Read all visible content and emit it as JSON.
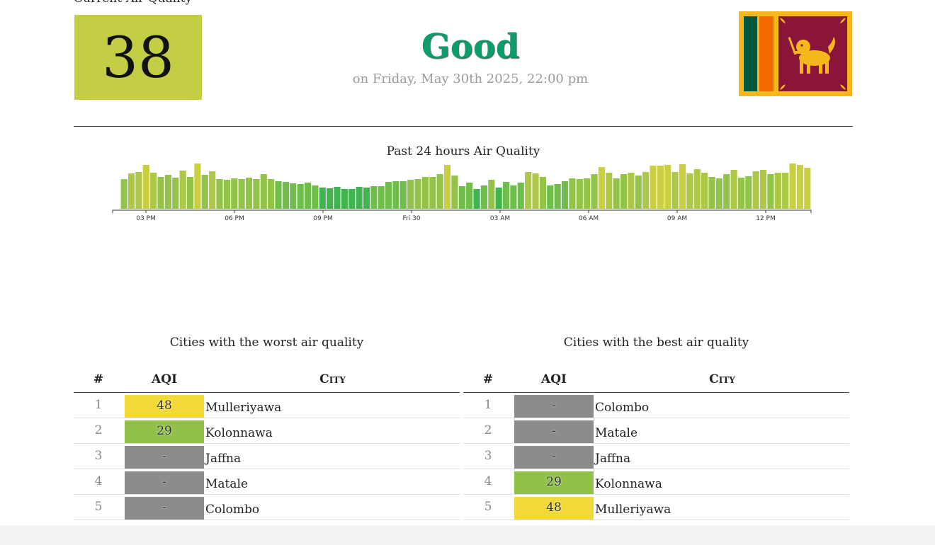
{
  "current": {
    "heading": "Current Air Quality",
    "aqi": "38",
    "aqi_color": "#c4ce45",
    "status": "Good",
    "status_color": "#0e9b6d",
    "date": "on Friday, May 30th 2025, 22:00 pm"
  },
  "chart_data": {
    "type": "bar",
    "title": "Past 24 hours Air Quality",
    "tick_labels": [
      "03 PM",
      "06 PM",
      "09 PM",
      "Fri 30",
      "03 AM",
      "06 AM",
      "09 AM",
      "12 PM"
    ],
    "values": [
      42,
      50,
      52,
      62,
      51,
      45,
      48,
      44,
      54,
      45,
      64,
      48,
      53,
      42,
      41,
      43,
      42,
      44,
      42,
      49,
      42,
      39,
      38,
      36,
      35,
      37,
      33,
      30,
      29,
      31,
      28,
      28,
      31,
      30,
      32,
      32,
      38,
      39,
      39,
      41,
      42,
      45,
      45,
      49,
      62,
      47,
      32,
      37,
      28,
      33,
      41,
      30,
      38,
      33,
      37,
      52,
      50,
      45,
      33,
      35,
      39,
      43,
      42,
      43,
      49,
      59,
      51,
      43,
      49,
      51,
      47,
      52,
      61,
      61,
      62,
      52,
      63,
      50,
      56,
      51,
      45,
      43,
      49,
      55,
      44,
      46,
      53,
      55,
      49,
      51,
      51,
      64,
      62,
      58
    ],
    "ylim": [
      0,
      70
    ]
  },
  "worst": {
    "title": "Cities with the worst air quality",
    "headers": {
      "num": "#",
      "aqi": "AQI",
      "city": "City"
    },
    "rows": [
      {
        "num": "1",
        "aqi": "48",
        "city": "Mulleriyawa",
        "color": "#f2d938"
      },
      {
        "num": "2",
        "aqi": "29",
        "city": "Kolonnawa",
        "color": "#92c14a"
      },
      {
        "num": "3",
        "aqi": "-",
        "city": "Jaffna",
        "color": "#8c8c8c"
      },
      {
        "num": "4",
        "aqi": "-",
        "city": "Matale",
        "color": "#8c8c8c"
      },
      {
        "num": "5",
        "aqi": "-",
        "city": "Colombo",
        "color": "#8c8c8c"
      }
    ]
  },
  "best": {
    "title": "Cities with the best air quality",
    "headers": {
      "num": "#",
      "aqi": "AQI",
      "city": "City"
    },
    "rows": [
      {
        "num": "1",
        "aqi": "-",
        "city": "Colombo",
        "color": "#8c8c8c"
      },
      {
        "num": "2",
        "aqi": "-",
        "city": "Matale",
        "color": "#8c8c8c"
      },
      {
        "num": "3",
        "aqi": "-",
        "city": "Jaffna",
        "color": "#8c8c8c"
      },
      {
        "num": "4",
        "aqi": "29",
        "city": "Kolonnawa",
        "color": "#92c14a"
      },
      {
        "num": "5",
        "aqi": "48",
        "city": "Mulleriyawa",
        "color": "#f2d938"
      }
    ]
  }
}
